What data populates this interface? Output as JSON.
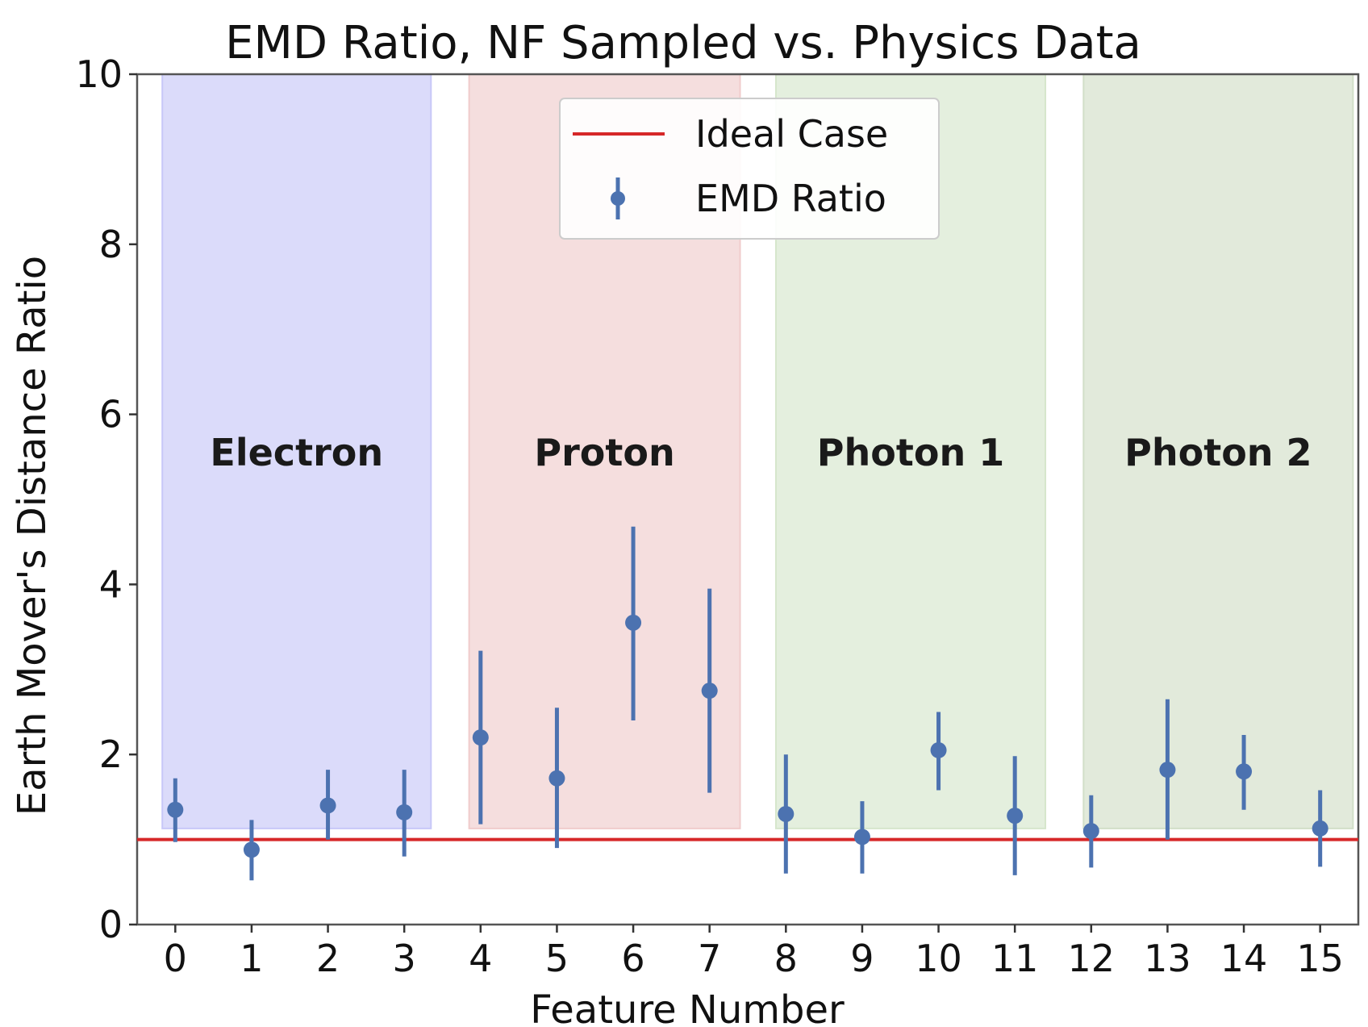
{
  "chart_data": {
    "type": "scatter",
    "title": "EMD Ratio, NF Sampled vs. Physics Data",
    "xlabel": "Feature Number",
    "ylabel": "Earth Mover's Distance Ratio",
    "xlim": [
      -0.5,
      15.5
    ],
    "ylim": [
      0,
      10
    ],
    "x_ticks": [
      "0",
      "1",
      "2",
      "3",
      "4",
      "5",
      "6",
      "7",
      "8",
      "9",
      "10",
      "11",
      "12",
      "13",
      "14",
      "15"
    ],
    "y_ticks": [
      "0",
      "2",
      "4",
      "6",
      "8",
      "10"
    ],
    "grid": false,
    "legend_position": "top-center",
    "legend": [
      {
        "label": "Ideal Case",
        "kind": "line",
        "color": "#d62728"
      },
      {
        "label": "EMD Ratio",
        "kind": "errorbar",
        "color": "#4c72b0"
      }
    ],
    "ideal_case": 1.0,
    "series": [
      {
        "name": "EMD Ratio",
        "color": "#4c72b0",
        "x": [
          0,
          1,
          2,
          3,
          4,
          5,
          6,
          7,
          8,
          9,
          10,
          11,
          12,
          13,
          14,
          15
        ],
        "y": [
          1.35,
          0.88,
          1.4,
          1.32,
          2.2,
          1.72,
          3.55,
          2.75,
          1.3,
          1.03,
          2.05,
          1.28,
          1.1,
          1.82,
          1.8,
          1.13
        ],
        "err_low": [
          0.97,
          0.52,
          1.0,
          0.8,
          1.18,
          0.9,
          2.4,
          1.55,
          0.6,
          0.6,
          1.58,
          0.58,
          0.67,
          1.0,
          1.35,
          0.68
        ],
        "err_high": [
          1.72,
          1.23,
          1.82,
          1.82,
          3.22,
          2.55,
          4.68,
          3.95,
          2.0,
          1.45,
          2.5,
          1.98,
          1.52,
          2.65,
          2.23,
          1.58
        ]
      }
    ],
    "regions": [
      {
        "label": "Electron",
        "x_from": -0.17,
        "x_to": 3.35,
        "y_from": 1.13,
        "y_to": 10,
        "color": "#c8c8f8"
      },
      {
        "label": "Proton",
        "x_from": 3.85,
        "x_to": 7.4,
        "y_from": 1.13,
        "y_to": 10,
        "color": "#f0cccc"
      },
      {
        "label": "Photon 1",
        "x_from": 7.87,
        "x_to": 11.4,
        "y_from": 1.13,
        "y_to": 10,
        "color": "#d6e6cc"
      },
      {
        "label": "Photon 2",
        "x_from": 11.9,
        "x_to": 15.43,
        "y_from": 1.13,
        "y_to": 10,
        "color": "#d2dfc8"
      }
    ],
    "region_label_y": 5.4
  }
}
